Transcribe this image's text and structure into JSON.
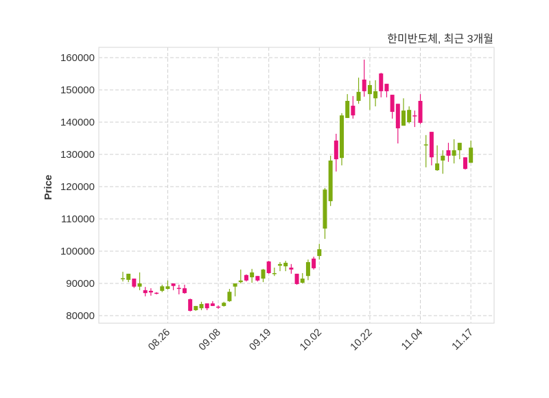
{
  "chart_data": {
    "type": "candlestick",
    "title": "한미반도체, 최근 3개월",
    "xlabel": "",
    "ylabel": "Price",
    "ylim": [
      77660,
      163200
    ],
    "yticks": [
      80000,
      90000,
      100000,
      110000,
      120000,
      130000,
      140000,
      150000,
      160000
    ],
    "xticks": [
      {
        "index": 8,
        "label": "08.26"
      },
      {
        "index": 17,
        "label": "09.08"
      },
      {
        "index": 26,
        "label": "09.19"
      },
      {
        "index": 35,
        "label": "10.02"
      },
      {
        "index": 44,
        "label": "10.22"
      },
      {
        "index": 53,
        "label": "11.04"
      },
      {
        "index": 62,
        "label": "11.17"
      }
    ],
    "grid": true,
    "colors": {
      "up": "#7dab10",
      "down": "#e8127c",
      "grid": "#cfcfcf",
      "frame": "#dddddd"
    },
    "ohlc": [
      [
        91300,
        93600,
        90600,
        91600
      ],
      [
        91100,
        93000,
        90400,
        93000
      ],
      [
        91500,
        91500,
        88600,
        89000
      ],
      [
        89000,
        93400,
        87900,
        90000
      ],
      [
        87900,
        88900,
        86000,
        87000
      ],
      [
        87700,
        88500,
        86200,
        87200
      ],
      [
        87100,
        87300,
        86600,
        86800
      ],
      [
        87700,
        89600,
        87300,
        89100
      ],
      [
        88300,
        90900,
        88100,
        89100
      ],
      [
        90000,
        90000,
        87900,
        89200
      ],
      [
        88600,
        89600,
        86600,
        88400
      ],
      [
        88500,
        89600,
        86800,
        87000
      ],
      [
        85100,
        85300,
        81300,
        81500
      ],
      [
        81700,
        83000,
        81500,
        83000
      ],
      [
        82300,
        84300,
        81700,
        83600
      ],
      [
        83800,
        83800,
        81700,
        82300
      ],
      [
        83800,
        84500,
        83000,
        83000
      ],
      [
        82800,
        83200,
        82100,
        82600
      ],
      [
        83000,
        84300,
        82800,
        84000
      ],
      [
        84500,
        88300,
        84300,
        87400
      ],
      [
        89000,
        90000,
        86000,
        90000
      ],
      [
        90400,
        94300,
        90000,
        90900
      ],
      [
        92600,
        92800,
        90600,
        90900
      ],
      [
        91900,
        94500,
        90200,
        93400
      ],
      [
        92300,
        92300,
        90600,
        90900
      ],
      [
        91500,
        94500,
        90400,
        94300
      ],
      [
        96800,
        97000,
        93000,
        93200
      ],
      [
        93000,
        94900,
        92300,
        93200
      ],
      [
        95500,
        96600,
        93800,
        96000
      ],
      [
        95300,
        97000,
        93800,
        96400
      ],
      [
        94900,
        96000,
        93000,
        94300
      ],
      [
        93000,
        93000,
        89600,
        89800
      ],
      [
        90200,
        93200,
        90000,
        91500
      ],
      [
        92300,
        97400,
        91000,
        96600
      ],
      [
        97700,
        98300,
        94300,
        94700
      ],
      [
        98500,
        102300,
        97400,
        100600
      ],
      [
        107000,
        119600,
        103800,
        119100
      ],
      [
        115500,
        129600,
        114000,
        128100
      ],
      [
        134300,
        136400,
        124700,
        128500
      ],
      [
        128900,
        142800,
        126600,
        142100
      ],
      [
        141300,
        148700,
        141300,
        146600
      ],
      [
        145100,
        148100,
        141100,
        142100
      ],
      [
        146600,
        153800,
        145700,
        149400
      ],
      [
        153200,
        159400,
        147900,
        149600
      ],
      [
        148700,
        152800,
        143800,
        151500
      ],
      [
        147400,
        153000,
        144900,
        149600
      ],
      [
        155100,
        155300,
        147700,
        149600
      ],
      [
        151900,
        151900,
        147700,
        149600
      ],
      [
        148500,
        148500,
        141100,
        143200
      ],
      [
        145700,
        145700,
        133400,
        138100
      ],
      [
        138900,
        147400,
        138900,
        143600
      ],
      [
        140000,
        144900,
        139600,
        143800
      ],
      [
        142100,
        143600,
        138500,
        141900
      ],
      [
        146600,
        148700,
        139400,
        139800
      ],
      [
        132800,
        136000,
        126000,
        133100
      ],
      [
        137000,
        137000,
        126600,
        129100
      ],
      [
        125100,
        132800,
        124900,
        127200
      ],
      [
        128100,
        131300,
        124000,
        129600
      ],
      [
        131300,
        133600,
        127700,
        129600
      ],
      [
        129600,
        134700,
        127200,
        131300
      ],
      [
        131300,
        133600,
        128500,
        133600
      ],
      [
        129100,
        129100,
        125300,
        125500
      ],
      [
        127400,
        134300,
        127400,
        132100
      ]
    ]
  }
}
